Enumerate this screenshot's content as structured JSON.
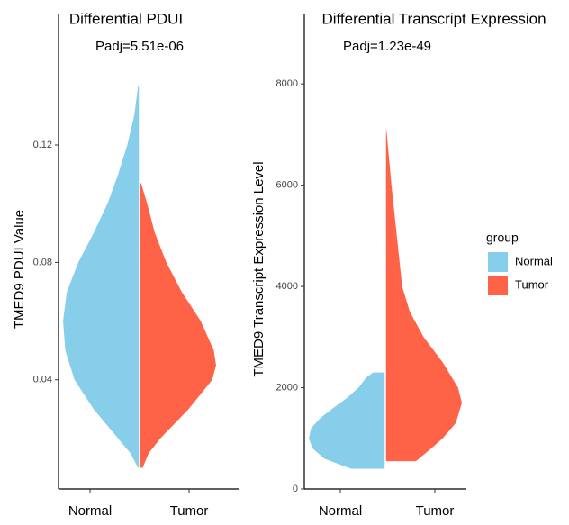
{
  "chart_data": [
    {
      "type": "violin",
      "title": "Differential PDUI",
      "annotation": "Padj=5.51e-06",
      "ylabel": "TMED9 PDUI Value",
      "categories": [
        "Normal",
        "Tumor"
      ],
      "ylim": [
        0.0028,
        0.1648
      ],
      "yticks": [
        0.04,
        0.08,
        0.12
      ],
      "series": [
        {
          "name": "Normal",
          "color": "#87CEEB",
          "values": [
            0.01,
            0.01,
            0.015,
            0.02,
            0.03,
            0.04,
            0.05,
            0.06,
            0.07,
            0.08,
            0.09,
            0.1,
            0.11,
            0.12,
            0.13,
            0.14,
            0.14
          ],
          "density": [
            0,
            0.02,
            0.12,
            0.28,
            0.6,
            0.85,
            0.97,
            1,
            0.95,
            0.8,
            0.6,
            0.42,
            0.28,
            0.16,
            0.07,
            0.02,
            0
          ]
        },
        {
          "name": "Tumor",
          "color": "#FF6347",
          "values": [
            0.01,
            0.01,
            0.015,
            0.02,
            0.03,
            0.04,
            0.045,
            0.05,
            0.06,
            0.07,
            0.08,
            0.09,
            0.1,
            0.107,
            0.107
          ],
          "density": [
            0,
            0.04,
            0.12,
            0.27,
            0.64,
            0.95,
            1,
            0.97,
            0.8,
            0.55,
            0.35,
            0.2,
            0.1,
            0.02,
            0
          ]
        }
      ]
    },
    {
      "type": "violin",
      "title": "Differential Transcript Expression",
      "annotation": "Padj=1.23e-49",
      "ylabel": "TMED9 Transcript Expression Level",
      "categories": [
        "Normal",
        "Tumor"
      ],
      "ylim": [
        0,
        9390
      ],
      "yticks": [
        0,
        2000,
        4000,
        6000,
        8000
      ],
      "legend_title": "group",
      "legend": "right",
      "series": [
        {
          "name": "Normal",
          "color": "#87CEEB",
          "values": [
            400,
            400,
            600,
            800,
            1000,
            1200,
            1400,
            1600,
            1800,
            2000,
            2200,
            2300,
            2300
          ],
          "density": [
            0,
            0.45,
            0.8,
            0.95,
            1,
            0.97,
            0.85,
            0.68,
            0.5,
            0.35,
            0.25,
            0.16,
            0
          ]
        },
        {
          "name": "Tumor",
          "color": "#FF6347",
          "values": [
            550,
            550,
            800,
            1000,
            1300,
            1700,
            2000,
            2500,
            3000,
            3500,
            4000,
            5000,
            6000,
            7000,
            7200
          ],
          "density": [
            0,
            0.4,
            0.6,
            0.75,
            0.92,
            1,
            0.95,
            0.75,
            0.5,
            0.32,
            0.22,
            0.15,
            0.08,
            0.02,
            0
          ]
        }
      ]
    }
  ]
}
